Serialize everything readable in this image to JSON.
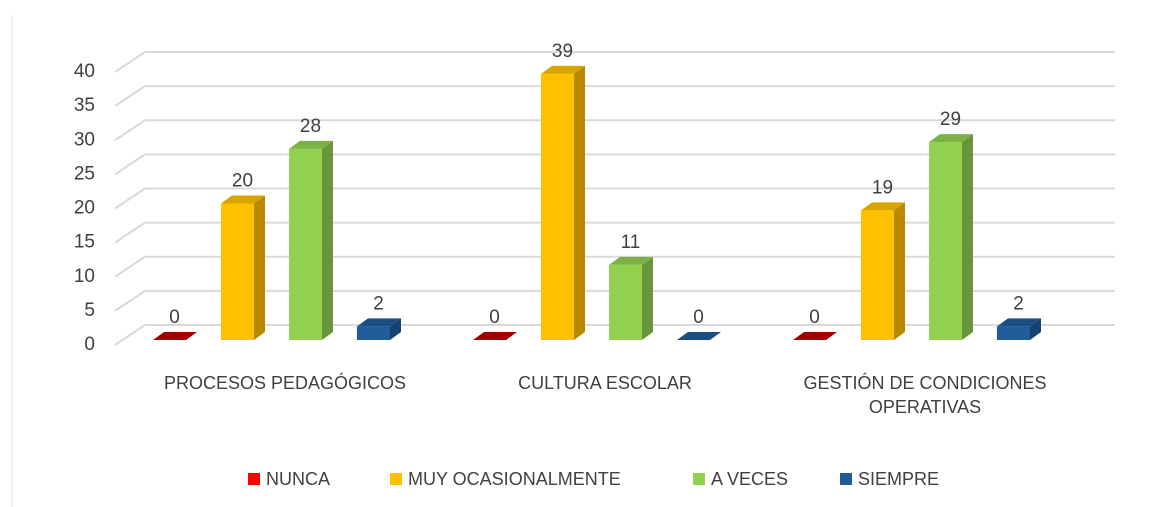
{
  "chart_data": {
    "type": "bar3d",
    "categories": [
      "PROCESOS PEDAGÓGICOS",
      "CULTURA ESCOLAR",
      "GESTIÓN DE CONDICIONES OPERATIVAS"
    ],
    "series": [
      {
        "name": "NUNCA",
        "color": "#c00000",
        "values": [
          0,
          0,
          0
        ]
      },
      {
        "name": "MUY OCASIONALMENTE",
        "color": "#ffc000",
        "values": [
          20,
          39,
          19
        ]
      },
      {
        "name": "A VECES",
        "color": "#92d050",
        "values": [
          28,
          11,
          29
        ]
      },
      {
        "name": "SIEMPRE",
        "color": "#1f5c99",
        "values": [
          2,
          0,
          2
        ]
      }
    ],
    "ylim": [
      0,
      40
    ],
    "yticks": [
      0,
      5,
      10,
      15,
      20,
      25,
      30,
      35,
      40
    ],
    "grid": true,
    "legend": "bottom"
  }
}
